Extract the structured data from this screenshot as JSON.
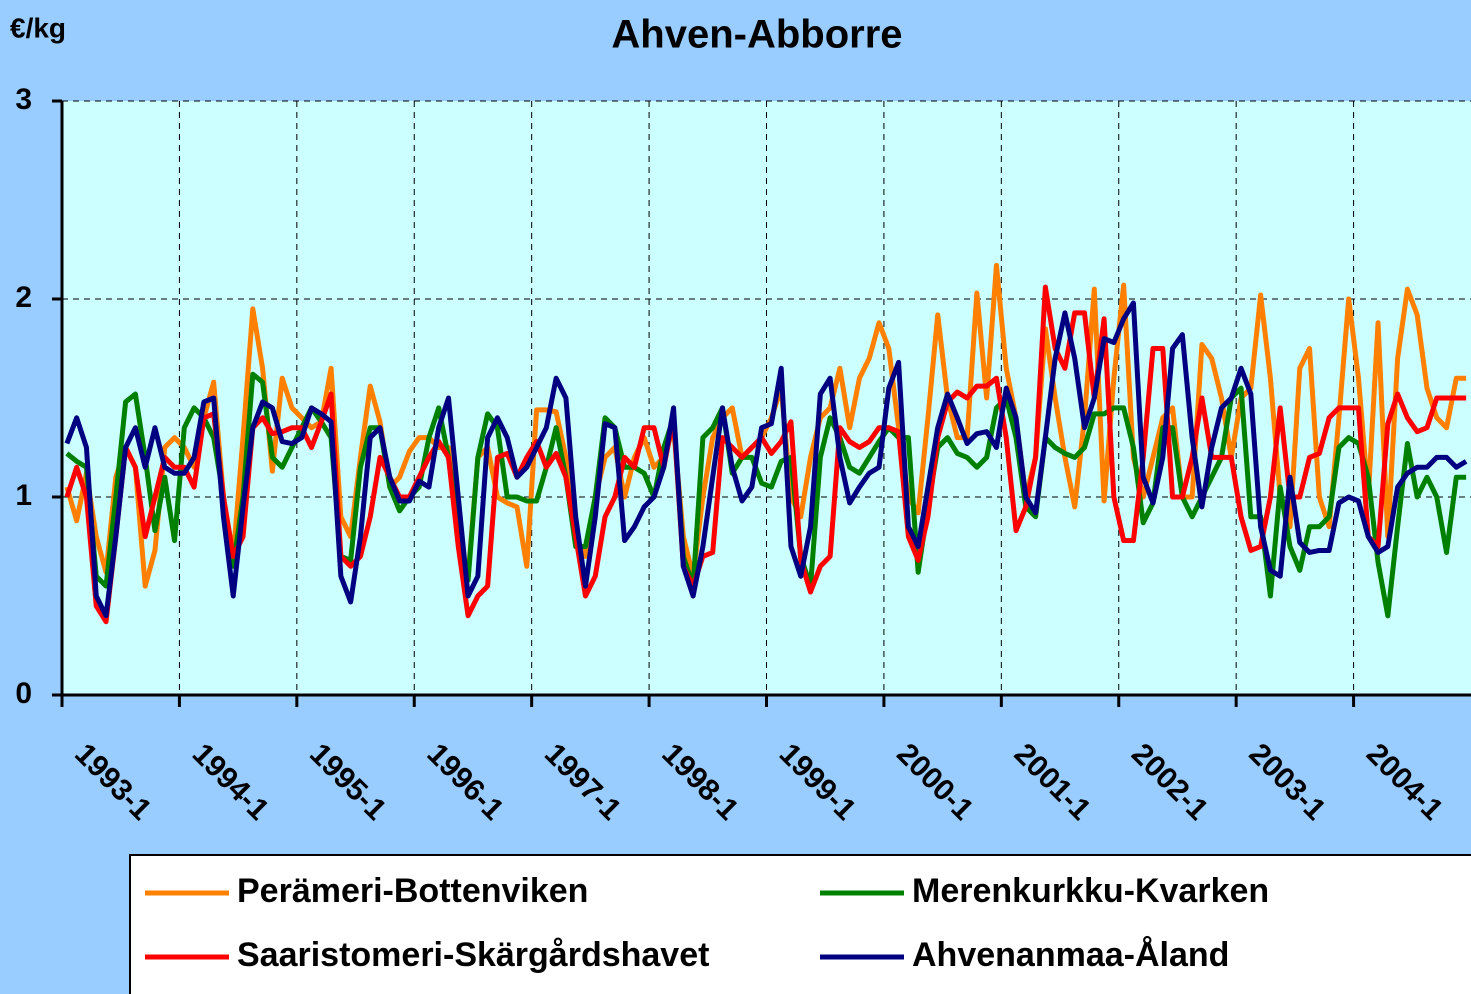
{
  "chart_data": {
    "type": "line",
    "title": "Ahven-Abborre",
    "y_label": "€/kg",
    "categories": [
      "1993-1",
      null,
      null,
      null,
      null,
      null,
      null,
      null,
      null,
      null,
      null,
      null,
      "1994-1",
      null,
      null,
      null,
      null,
      null,
      null,
      null,
      null,
      null,
      null,
      null,
      "1995-1",
      null,
      null,
      null,
      null,
      null,
      null,
      null,
      null,
      null,
      null,
      null,
      "1996-1",
      null,
      null,
      null,
      null,
      null,
      null,
      null,
      null,
      null,
      null,
      null,
      "1997-1",
      null,
      null,
      null,
      null,
      null,
      null,
      null,
      null,
      null,
      null,
      null,
      "1998-1",
      null,
      null,
      null,
      null,
      null,
      null,
      null,
      null,
      null,
      null,
      null,
      "1999-1",
      null,
      null,
      null,
      null,
      null,
      null,
      null,
      null,
      null,
      null,
      null,
      "2000-1",
      null,
      null,
      null,
      null,
      null,
      null,
      null,
      null,
      null,
      null,
      null,
      "2001-1",
      null,
      null,
      null,
      null,
      null,
      null,
      null,
      null,
      null,
      null,
      null,
      "2002-1",
      null,
      null,
      null,
      null,
      null,
      null,
      null,
      null,
      null,
      null,
      null,
      "2003-1",
      null,
      null,
      null,
      null,
      null,
      null,
      null,
      null,
      null,
      null,
      null,
      "2004-1",
      null,
      null,
      null,
      null,
      null,
      null,
      null,
      null,
      null,
      null,
      null
    ],
    "ylim": [
      0,
      3
    ],
    "yticks": [
      0,
      1,
      2,
      3
    ],
    "grid": true,
    "legend": "bottom",
    "series": [
      {
        "name": "Perämeri-Bottenviken",
        "color": "#ff8000",
        "values": [
          1.05,
          0.88,
          1.12,
          0.8,
          0.62,
          1.1,
          1.25,
          1.15,
          0.55,
          0.73,
          1.25,
          1.3,
          1.25,
          1.15,
          1.4,
          1.58,
          1.0,
          0.7,
          1.3,
          1.95,
          1.65,
          1.13,
          1.6,
          1.45,
          1.4,
          1.35,
          1.38,
          1.65,
          0.9,
          0.8,
          1.2,
          1.56,
          1.38,
          1.05,
          1.1,
          1.23,
          1.3,
          1.3,
          1.25,
          1.25,
          0.8,
          0.6,
          1.2,
          1.25,
          1.0,
          0.97,
          0.95,
          0.65,
          1.44,
          1.44,
          1.43,
          1.2,
          0.8,
          0.7,
          1.0,
          1.2,
          1.25,
          1.0,
          1.2,
          1.3,
          1.15,
          1.2,
          1.35,
          0.8,
          0.6,
          1.0,
          1.3,
          1.4,
          1.45,
          1.2,
          1.25,
          1.3,
          1.4,
          1.55,
          1.0,
          0.9,
          1.2,
          1.4,
          1.45,
          1.65,
          1.35,
          1.6,
          1.7,
          1.88,
          1.75,
          1.35,
          1.0,
          0.92,
          1.4,
          1.92,
          1.5,
          1.3,
          1.3,
          2.03,
          1.5,
          2.17,
          1.65,
          1.4,
          1.0,
          1.2,
          1.85,
          1.5,
          1.2,
          0.95,
          1.4,
          2.05,
          0.98,
          1.6,
          2.07,
          1.2,
          1.0,
          1.2,
          1.4,
          1.45,
          1.0,
          1.0,
          1.77,
          1.7,
          1.5,
          1.2,
          1.5,
          1.55,
          2.02,
          1.6,
          1.0,
          0.85,
          1.65,
          1.75,
          1.0,
          0.85,
          1.4,
          2.0,
          1.6,
          1.0,
          1.88,
          0.8,
          1.7,
          2.05,
          1.92,
          1.55,
          1.4,
          1.35,
          1.6,
          1.6
        ]
      },
      {
        "name": "Merenkurkku-Kvarken",
        "color": "#008000",
        "values": [
          1.22,
          1.18,
          1.15,
          0.6,
          0.55,
          1.0,
          1.48,
          1.52,
          1.2,
          0.83,
          1.1,
          0.78,
          1.35,
          1.45,
          1.4,
          1.3,
          1.0,
          0.65,
          1.0,
          1.62,
          1.58,
          1.2,
          1.15,
          1.25,
          1.35,
          1.45,
          1.38,
          1.3,
          0.7,
          0.68,
          1.15,
          1.35,
          1.35,
          1.05,
          0.93,
          1.0,
          1.05,
          1.3,
          1.45,
          1.2,
          0.85,
          0.58,
          1.2,
          1.42,
          1.35,
          1.0,
          1.0,
          0.98,
          0.98,
          1.15,
          1.35,
          1.1,
          0.75,
          0.75,
          1.0,
          1.4,
          1.35,
          1.15,
          1.15,
          1.12,
          1.0,
          1.25,
          1.4,
          0.7,
          0.55,
          1.3,
          1.35,
          1.45,
          1.12,
          1.2,
          1.2,
          1.07,
          1.05,
          1.18,
          1.2,
          0.7,
          0.55,
          1.2,
          1.4,
          1.3,
          1.15,
          1.12,
          1.2,
          1.28,
          1.35,
          1.3,
          1.3,
          0.62,
          0.95,
          1.25,
          1.3,
          1.22,
          1.2,
          1.15,
          1.2,
          1.45,
          1.5,
          1.3,
          0.95,
          0.9,
          1.3,
          1.25,
          1.22,
          1.2,
          1.25,
          1.42,
          1.42,
          1.45,
          1.45,
          1.25,
          0.87,
          0.97,
          1.35,
          1.35,
          1.0,
          0.9,
          1.0,
          1.1,
          1.2,
          1.5,
          1.55,
          0.9,
          0.9,
          0.5,
          1.05,
          0.75,
          0.63,
          0.85,
          0.85,
          0.9,
          1.25,
          1.3,
          1.27,
          1.1,
          0.67,
          0.4,
          0.85,
          1.27,
          1.0,
          1.1,
          1.0,
          0.72,
          1.1,
          1.1
        ]
      },
      {
        "name": "Saaristomeri-Skärgårdshavet",
        "color": "#ff0000",
        "values": [
          1.0,
          1.15,
          1.0,
          0.45,
          0.37,
          0.8,
          1.25,
          1.15,
          0.8,
          1.0,
          1.2,
          1.15,
          1.15,
          1.05,
          1.4,
          1.42,
          1.0,
          0.7,
          0.8,
          1.35,
          1.4,
          1.32,
          1.33,
          1.35,
          1.35,
          1.25,
          1.38,
          1.52,
          0.7,
          0.65,
          0.7,
          0.9,
          1.2,
          1.1,
          1.0,
          1.0,
          1.1,
          1.2,
          1.28,
          1.2,
          0.75,
          0.4,
          0.5,
          0.55,
          1.2,
          1.22,
          1.1,
          1.2,
          1.28,
          1.15,
          1.22,
          1.1,
          0.8,
          0.5,
          0.6,
          0.9,
          1.0,
          1.2,
          1.15,
          1.35,
          1.35,
          1.15,
          1.4,
          0.65,
          0.55,
          0.7,
          0.72,
          1.3,
          1.25,
          1.2,
          1.25,
          1.3,
          1.22,
          1.28,
          1.38,
          0.68,
          0.52,
          0.65,
          0.7,
          1.35,
          1.28,
          1.25,
          1.28,
          1.35,
          1.35,
          1.33,
          0.8,
          0.68,
          0.9,
          1.3,
          1.48,
          1.53,
          1.5,
          1.56,
          1.56,
          1.6,
          1.3,
          0.83,
          0.95,
          1.2,
          2.06,
          1.75,
          1.65,
          1.93,
          1.93,
          1.5,
          1.9,
          1.0,
          0.78,
          0.78,
          1.2,
          1.75,
          1.75,
          1.0,
          1.0,
          1.2,
          1.5,
          1.2,
          1.2,
          1.2,
          0.9,
          0.73,
          0.75,
          1.0,
          1.45,
          1.0,
          1.0,
          1.2,
          1.22,
          1.4,
          1.45,
          1.45,
          1.45,
          0.8,
          0.75,
          1.37,
          1.52,
          1.4,
          1.33,
          1.35,
          1.5,
          1.5,
          1.5,
          1.5
        ]
      },
      {
        "name": "Ahvenanmaa-Åland",
        "color": "#000080",
        "values": [
          1.27,
          1.4,
          1.25,
          0.5,
          0.4,
          0.8,
          1.25,
          1.35,
          1.15,
          1.35,
          1.15,
          1.12,
          1.12,
          1.2,
          1.48,
          1.5,
          0.9,
          0.5,
          0.95,
          1.35,
          1.48,
          1.45,
          1.28,
          1.27,
          1.3,
          1.45,
          1.42,
          1.38,
          0.6,
          0.47,
          0.8,
          1.3,
          1.35,
          1.1,
          0.98,
          0.98,
          1.08,
          1.05,
          1.35,
          1.5,
          1.0,
          0.5,
          0.6,
          1.3,
          1.4,
          1.3,
          1.1,
          1.15,
          1.25,
          1.35,
          1.6,
          1.5,
          0.9,
          0.55,
          0.9,
          1.37,
          1.35,
          0.78,
          0.85,
          0.95,
          1.0,
          1.15,
          1.45,
          0.65,
          0.5,
          0.75,
          1.1,
          1.45,
          1.15,
          0.98,
          1.05,
          1.35,
          1.37,
          1.65,
          0.75,
          0.6,
          0.85,
          1.52,
          1.6,
          1.2,
          0.97,
          1.05,
          1.12,
          1.15,
          1.55,
          1.68,
          0.85,
          0.75,
          1.05,
          1.35,
          1.52,
          1.4,
          1.27,
          1.32,
          1.33,
          1.25,
          1.55,
          1.4,
          1.0,
          0.92,
          1.3,
          1.7,
          1.93,
          1.7,
          1.35,
          1.5,
          1.8,
          1.78,
          1.9,
          1.98,
          1.1,
          0.97,
          1.2,
          1.75,
          1.82,
          1.3,
          0.95,
          1.25,
          1.45,
          1.5,
          1.65,
          1.52,
          0.85,
          0.63,
          0.6,
          1.1,
          0.77,
          0.72,
          0.73,
          0.73,
          0.97,
          1.0,
          0.98,
          0.8,
          0.72,
          0.75,
          1.05,
          1.12,
          1.15,
          1.15,
          1.2,
          1.2,
          1.15,
          1.18
        ]
      }
    ]
  }
}
